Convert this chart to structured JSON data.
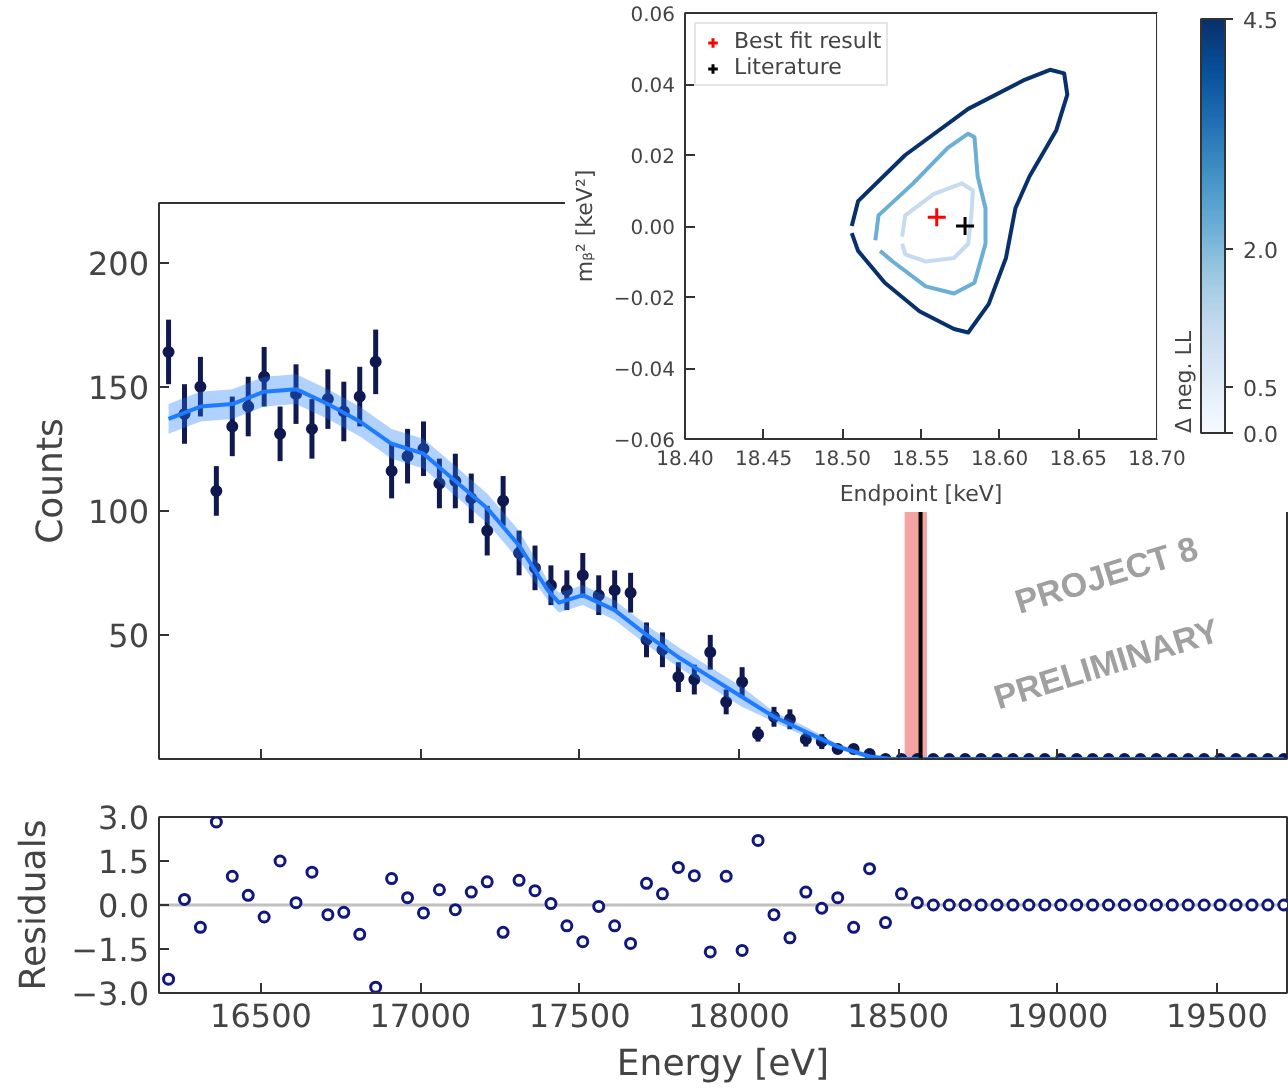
{
  "chart_data": [
    {
      "type": "scatter",
      "ylabel": "Counts",
      "xlim": [
        16180,
        19720
      ],
      "ylim": [
        0,
        224
      ],
      "xticks": [
        16500,
        17000,
        17500,
        18000,
        18500,
        19000,
        19500
      ],
      "yticks": [
        50,
        100,
        150,
        200
      ],
      "tick_labels": "y",
      "grid": false,
      "legend": false,
      "series": [
        {
          "type": "scatter",
          "color": "#101850",
          "marker": "circle",
          "x": [
            16210,
            16260,
            16310,
            16360,
            16410,
            16460,
            16510,
            16560,
            16610,
            16660,
            16710,
            16760,
            16810,
            16860,
            16910,
            16960,
            17010,
            17060,
            17110,
            17160,
            17210,
            17260,
            17310,
            17360,
            17410,
            17460,
            17510,
            17560,
            17610,
            17660,
            17710,
            17760,
            17810,
            17860,
            17910,
            17960,
            18010,
            18060,
            18110,
            18160,
            18210,
            18260,
            18310,
            18360,
            18410,
            18460,
            18510,
            18560,
            18610,
            18660,
            18710,
            18760,
            18810,
            18860,
            18910,
            18960,
            19010,
            19060,
            19110,
            19160,
            19210,
            19260,
            19310,
            19360,
            19410,
            19460,
            19510,
            19560,
            19610,
            19660,
            19710
          ],
          "values": [
            164,
            139,
            150,
            108,
            134,
            142,
            154,
            131,
            147,
            133,
            145,
            140,
            146,
            160,
            116,
            122,
            125,
            111,
            112,
            105,
            92,
            104,
            83,
            77,
            70,
            68,
            74,
            66,
            68,
            67,
            48,
            44,
            33,
            32,
            43,
            23,
            31,
            10,
            17,
            16,
            8,
            7,
            4,
            4,
            2,
            0,
            0,
            0,
            0,
            0,
            0,
            0,
            0,
            0,
            0,
            0,
            0,
            0,
            0,
            0,
            0,
            0,
            0,
            0,
            0,
            0,
            0,
            0,
            0,
            0,
            0
          ],
          "errors": [
            13,
            12,
            12,
            10,
            12,
            12,
            12,
            11,
            12,
            12,
            12,
            12,
            12,
            13,
            11,
            11,
            11,
            10,
            11,
            10,
            10,
            10,
            9,
            9,
            8,
            8,
            9,
            8,
            8,
            8,
            7,
            7,
            6,
            6,
            7,
            5,
            6,
            3,
            4,
            4,
            3,
            3,
            2,
            2,
            1,
            null,
            null,
            null,
            null,
            null,
            null,
            null,
            null,
            null,
            null,
            null,
            null,
            null,
            null,
            null,
            null,
            null,
            null,
            null,
            null,
            null,
            null,
            null,
            null,
            null,
            null
          ]
        },
        {
          "type": "line",
          "color": "#1f7bff",
          "line_style": "solid",
          "x": [
            16210,
            16310,
            16410,
            16510,
            16610,
            16710,
            16810,
            16910,
            17010,
            17110,
            17210,
            17310,
            17400,
            17435,
            17510,
            17610,
            17710,
            17810,
            17910,
            18010,
            18110,
            18210,
            18310,
            18410,
            18480,
            19710
          ],
          "values": [
            137,
            142,
            143,
            148,
            149,
            143,
            136,
            127,
            123,
            112,
            101,
            86,
            68,
            63,
            66,
            60,
            50,
            41,
            33,
            25,
            17,
            11,
            5,
            1,
            0,
            0
          ],
          "lower": [
            131,
            136,
            137,
            142,
            143,
            137,
            130,
            121,
            117,
            106,
            95,
            80,
            64,
            59,
            62,
            56,
            46,
            37,
            29,
            21,
            15,
            9,
            4,
            0,
            0,
            0
          ],
          "upper": [
            143,
            148,
            149,
            154,
            155,
            149,
            142,
            133,
            129,
            118,
            107,
            92,
            72,
            67,
            70,
            64,
            54,
            45,
            37,
            29,
            19,
            13,
            6,
            2,
            0,
            0
          ]
        }
      ],
      "ref_lines": [
        {
          "axis": "x",
          "value": 18570,
          "color": "#000000"
        }
      ],
      "bands": [
        {
          "axis": "x",
          "from": 18520,
          "to": 18590,
          "color": "#f4a3a3"
        }
      ],
      "annotations": [
        "PROJECT 8",
        "PRELIMINARY"
      ]
    },
    {
      "type": "scatter",
      "xlabel": "Energy [eV]",
      "ylabel": "Residuals",
      "xlim": [
        16180,
        19720
      ],
      "ylim": [
        -3,
        3
      ],
      "xticks": [
        16500,
        17000,
        17500,
        18000,
        18500,
        19000,
        19500
      ],
      "yticks": [
        {
          "value": 3,
          "label": "3.0"
        },
        {
          "value": 1.5,
          "label": "1.5"
        },
        {
          "value": 0,
          "label": "0.0"
        },
        {
          "value": -1.5,
          "label": "−1.5"
        },
        {
          "value": -3,
          "label": "−3.0"
        }
      ],
      "grid": false,
      "legend": false,
      "x": [
        16210,
        16260,
        16310,
        16360,
        16410,
        16460,
        16510,
        16560,
        16610,
        16660,
        16710,
        16760,
        16810,
        16860,
        16910,
        16960,
        17010,
        17060,
        17110,
        17160,
        17210,
        17260,
        17310,
        17360,
        17410,
        17460,
        17510,
        17560,
        17610,
        17660,
        17710,
        17760,
        17810,
        17860,
        17910,
        17960,
        18010,
        18060,
        18110,
        18160,
        18210,
        18260,
        18310,
        18360,
        18410,
        18460,
        18510,
        18560,
        18610,
        18660,
        18710,
        18760,
        18810,
        18860,
        18910,
        18960,
        19010,
        19060,
        19110,
        19160,
        19210,
        19260,
        19310,
        19360,
        19410,
        19460,
        19510,
        19560,
        19610,
        19660,
        19710
      ],
      "series": [
        {
          "color": "#101880",
          "marker": "circle",
          "values": [
            -2.53,
            0.19,
            -0.76,
            2.83,
            0.98,
            0.33,
            -0.41,
            1.5,
            0.08,
            1.12,
            -0.33,
            -0.25,
            -1.0,
            -2.8,
            0.9,
            0.25,
            -0.27,
            0.52,
            -0.16,
            0.44,
            0.79,
            -0.93,
            0.84,
            0.49,
            0.05,
            -0.71,
            -1.25,
            -0.05,
            -0.71,
            -1.31,
            0.74,
            0.38,
            1.28,
            1.0,
            -1.6,
            0.98,
            -1.55,
            2.2,
            -0.33,
            -1.12,
            0.44,
            -0.11,
            0.25,
            -0.76,
            1.24,
            -0.6,
            0.38,
            0.08,
            0,
            0,
            0,
            0,
            0,
            0,
            0,
            0,
            0,
            0,
            0,
            0,
            0,
            0,
            0,
            0,
            0,
            0,
            0,
            0,
            0,
            0,
            0
          ]
        }
      ],
      "ref_lines": [
        {
          "axis": "y",
          "value": 0,
          "color": "#c0c0c0"
        }
      ]
    },
    {
      "type": "line",
      "xlabel": "Endpoint [keV]",
      "ylabel": "mᵦ² [keV²]",
      "clabel": "Δ neg. LL",
      "xlim": [
        18.4,
        18.7
      ],
      "ylim": [
        -0.06,
        0.06
      ],
      "xticks": [
        {
          "value": 18.4,
          "label": "18.40"
        },
        {
          "value": 18.45,
          "label": "18.45"
        },
        {
          "value": 18.5,
          "label": "18.50"
        },
        {
          "value": 18.55,
          "label": "18.55"
        },
        {
          "value": 18.6,
          "label": "18.60"
        },
        {
          "value": 18.65,
          "label": "18.65"
        },
        {
          "value": 18.7,
          "label": "18.70"
        }
      ],
      "yticks": [
        {
          "value": -0.06,
          "label": "−0.06"
        },
        {
          "value": -0.04,
          "label": "−0.04"
        },
        {
          "value": -0.02,
          "label": "−0.02"
        },
        {
          "value": 0,
          "label": "0.00"
        },
        {
          "value": 0.02,
          "label": "0.02"
        },
        {
          "value": 0.04,
          "label": "0.04"
        },
        {
          "value": 0.06,
          "label": "0.06"
        }
      ],
      "clim": [
        0,
        4.5
      ],
      "cticks": [
        {
          "value": 0,
          "label": "0.0"
        },
        {
          "value": 0.5,
          "label": "0.5"
        },
        {
          "value": 2.0,
          "label": "2.0"
        },
        {
          "value": 4.5,
          "label": "4.5"
        }
      ],
      "grid": false,
      "legend": "top left",
      "series": [
        {
          "type": "line",
          "color": "#08306b",
          "x": [
            18.506,
            18.51,
            18.54,
            18.58,
            18.615,
            18.632,
            18.641,
            18.643,
            18.636,
            18.619,
            18.61,
            18.604,
            18.593,
            18.58,
            18.571,
            18.549,
            18.527,
            18.51,
            18.506
          ],
          "values": [
            0.0,
            0.007,
            0.02,
            0.033,
            0.041,
            0.044,
            0.043,
            0.037,
            0.027,
            0.014,
            0.005,
            -0.009,
            -0.022,
            -0.03,
            -0.029,
            -0.024,
            -0.016,
            -0.007,
            -0.002
          ]
        },
        {
          "type": "line",
          "color": "#6baed6",
          "x": [
            18.521,
            18.523,
            18.545,
            18.567,
            18.58,
            18.584,
            18.586,
            18.591,
            18.591,
            18.584,
            18.571,
            18.553,
            18.532,
            18.524
          ],
          "values": [
            -0.004,
            0.003,
            0.012,
            0.022,
            0.026,
            0.025,
            0.014,
            0.005,
            -0.005,
            -0.016,
            -0.019,
            -0.017,
            -0.01,
            -0.007
          ]
        },
        {
          "type": "line",
          "color": "#c6dbef",
          "x": [
            18.538,
            18.54,
            18.558,
            18.576,
            18.583,
            18.582,
            18.58,
            18.571,
            18.553,
            18.54,
            18.538
          ],
          "values": [
            -0.003,
            0.003,
            0.009,
            0.012,
            0.01,
            0.003,
            -0.005,
            -0.009,
            -0.01,
            -0.008,
            -0.005
          ]
        },
        {
          "type": "scatter",
          "name": "Best fit result",
          "color": "#ff0000",
          "marker": "cross",
          "x": [
            18.56
          ],
          "values": [
            0.0025
          ]
        },
        {
          "type": "scatter",
          "name": "Literature",
          "color": "#000000",
          "marker": "cross",
          "x": [
            18.578
          ],
          "values": [
            0.0
          ]
        }
      ]
    }
  ]
}
